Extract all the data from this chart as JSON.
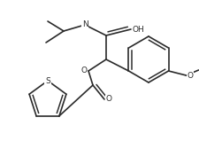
{
  "bg_color": "#ffffff",
  "line_color": "#2a2a2a",
  "line_width": 1.2,
  "figsize": [
    2.25,
    1.59
  ],
  "dpi": 100,
  "xlim": [
    0,
    225
  ],
  "ylim": [
    0,
    159
  ]
}
